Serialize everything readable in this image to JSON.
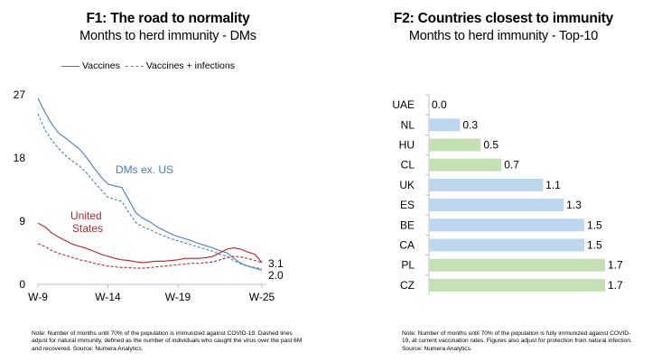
{
  "left": {
    "title": "F1: The road to normality",
    "subtitle": "Months to herd immunity - DMs",
    "legend": [
      {
        "label": "Vaccines",
        "style": "solid"
      },
      {
        "label": "Vaccines + infections",
        "style": "dashed"
      }
    ],
    "note": "Note: Number of months until 70% of the population is immunized against COVID-19. Dashed lines adjust for natural immunity, defined as the number of individuals who caught the virus over the past 6M and recovered. Source: Numera Analytics."
  },
  "right": {
    "title": "F2: Countries closest to immunity",
    "subtitle": "Months to herd immunity - Top-10",
    "note": "Note: Number of months until 70% of the population is fully immunized against COVID-19, at current vaccination rates. Figures also adjust for protection from natural infection. Source: Numera Analytics."
  },
  "colors": {
    "blue": "#4a7ebb",
    "red": "#b2282d",
    "bar_blue": "#bdd7ee",
    "bar_green": "#c5e0b4",
    "axis": "#bfbfbf"
  },
  "chart_data": [
    {
      "type": "line",
      "x_ticks": [
        "W-9",
        "W-14",
        "W-19",
        "W-25"
      ],
      "x_range": [
        9,
        25
      ],
      "ylim": [
        0,
        27
      ],
      "y_ticks": [
        0,
        9,
        18,
        27
      ],
      "grid": false,
      "legend_position": "top-left",
      "series": [
        {
          "name": "DMs ex. US",
          "kind": "Vaccines",
          "color": "blue",
          "dash": false,
          "x": [
            9,
            9.5,
            10,
            10.5,
            11,
            11.5,
            12,
            12.5,
            13,
            13.5,
            14,
            14.5,
            15,
            15.5,
            16,
            16.5,
            17,
            17.5,
            18,
            18.5,
            19,
            19.5,
            20,
            20.5,
            21,
            21.5,
            22,
            22.5,
            23,
            23.5,
            24,
            24.5,
            25
          ],
          "y": [
            26.5,
            24.5,
            22.8,
            21.5,
            20.8,
            20.0,
            19.2,
            18.0,
            16.6,
            15.3,
            14.3,
            14.0,
            13.8,
            12.0,
            10.2,
            9.4,
            8.9,
            8.2,
            7.7,
            7.2,
            6.8,
            6.5,
            6.2,
            5.8,
            5.5,
            5.2,
            4.8,
            4.5,
            3.7,
            3.0,
            2.6,
            2.3,
            2.0
          ]
        },
        {
          "name": "DMs ex. US",
          "kind": "Vaccines + infections",
          "color": "blue",
          "dash": true,
          "x": [
            9,
            9.5,
            10,
            10.5,
            11,
            11.5,
            12,
            12.5,
            13,
            13.5,
            14,
            14.5,
            15,
            15.5,
            16,
            16.5,
            17,
            17.5,
            18,
            18.5,
            19,
            19.5,
            20,
            20.5,
            21,
            21.5,
            22,
            22.5,
            23,
            23.5,
            24,
            24.5,
            25
          ],
          "y": [
            24.3,
            22.0,
            20.5,
            19.3,
            18.3,
            17.5,
            16.8,
            15.8,
            14.6,
            13.5,
            12.4,
            12.1,
            11.8,
            10.2,
            8.8,
            8.2,
            7.8,
            7.3,
            6.9,
            6.5,
            6.2,
            5.9,
            5.6,
            5.3,
            5.0,
            4.7,
            4.3,
            4.0,
            3.4,
            2.9,
            2.6,
            2.4,
            2.2
          ]
        },
        {
          "name": "United States",
          "kind": "Vaccines",
          "color": "red",
          "dash": false,
          "x": [
            9,
            9.5,
            10,
            10.5,
            11,
            11.5,
            12,
            12.5,
            13,
            13.5,
            14,
            14.5,
            15,
            15.5,
            16,
            16.5,
            17,
            17.5,
            18,
            18.5,
            19,
            19.5,
            20,
            20.5,
            21,
            21.5,
            22,
            22.5,
            23,
            23.5,
            24,
            24.5,
            25
          ],
          "y": [
            8.7,
            8.2,
            7.3,
            6.7,
            6.2,
            5.7,
            5.4,
            5.1,
            4.7,
            4.3,
            4.0,
            3.7,
            3.5,
            3.4,
            3.2,
            3.1,
            3.2,
            3.3,
            3.3,
            3.4,
            3.5,
            3.7,
            3.7,
            3.7,
            3.8,
            4.0,
            4.5,
            5.0,
            5.2,
            5.0,
            4.6,
            4.3,
            3.1
          ]
        },
        {
          "name": "United States",
          "kind": "Vaccines + infections",
          "color": "red",
          "dash": true,
          "x": [
            9,
            9.5,
            10,
            10.5,
            11,
            11.5,
            12,
            12.5,
            13,
            13.5,
            14,
            14.5,
            15,
            15.5,
            16,
            16.5,
            17,
            17.5,
            18,
            18.5,
            19,
            19.5,
            20,
            20.5,
            21,
            21.5,
            22,
            22.5,
            23,
            23.5,
            24,
            24.5,
            25
          ],
          "y": [
            5.8,
            5.4,
            4.8,
            4.4,
            4.1,
            3.8,
            3.5,
            3.3,
            3.0,
            2.8,
            2.6,
            2.5,
            2.4,
            2.4,
            2.3,
            2.3,
            2.4,
            2.5,
            2.6,
            2.7,
            2.8,
            2.9,
            3.0,
            3.0,
            3.1,
            3.2,
            3.5,
            3.8,
            4.0,
            3.9,
            3.7,
            3.4,
            3.1
          ]
        }
      ],
      "annotations": [
        {
          "text": "DMs ex. US",
          "color": "blue"
        },
        {
          "text": "United States",
          "lines": [
            "United",
            "States"
          ],
          "color": "red"
        }
      ],
      "end_labels": [
        "3.1",
        "2.0"
      ]
    },
    {
      "type": "bar",
      "orientation": "horizontal",
      "categories": [
        "UAE",
        "NL",
        "HU",
        "CL",
        "UK",
        "ES",
        "BE",
        "CA",
        "PL",
        "CZ"
      ],
      "values": [
        0.0,
        0.3,
        0.5,
        0.7,
        1.1,
        1.3,
        1.5,
        1.5,
        1.7,
        1.7
      ],
      "data_labels": [
        "0.0",
        "0.3",
        "0.5",
        "0.7",
        "1.1",
        "1.3",
        "1.5",
        "1.5",
        "1.7",
        "1.7"
      ],
      "bar_colors": [
        "bar_blue",
        "bar_blue",
        "bar_green",
        "bar_green",
        "bar_blue",
        "bar_blue",
        "bar_blue",
        "bar_blue",
        "bar_green",
        "bar_green"
      ],
      "xlim": [
        0,
        1.7
      ],
      "grid": false
    }
  ]
}
